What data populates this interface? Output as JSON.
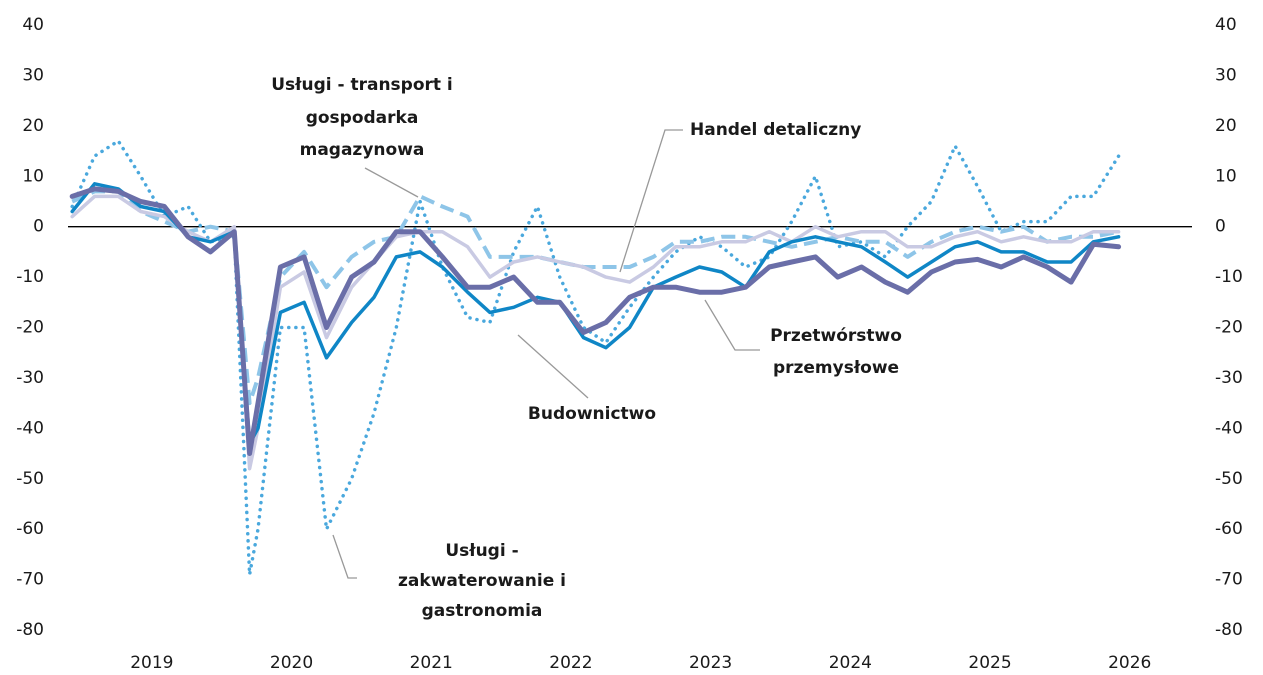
{
  "chart_data": {
    "type": "line",
    "xlim": [
      2018.857,
      2027.003
    ],
    "xticks": [
      {
        "value": 2019.5,
        "label": "2019"
      },
      {
        "value": 2020.5,
        "label": "2020"
      },
      {
        "value": 2021.5,
        "label": "2021"
      },
      {
        "value": 2022.5,
        "label": "2022"
      },
      {
        "value": 2023.5,
        "label": "2023"
      },
      {
        "value": 2024.5,
        "label": "2024"
      },
      {
        "value": 2025.5,
        "label": "2025"
      },
      {
        "value": 2026.5,
        "label": "2026"
      }
    ],
    "ylim": [
      -80,
      40
    ],
    "yticks": [
      40,
      30,
      20,
      10,
      0,
      -10,
      -20,
      -30,
      -40,
      -50,
      -60,
      -70,
      -80
    ],
    "y2lim": [
      -80,
      40
    ],
    "y2ticks": [
      40,
      30,
      20,
      10,
      0,
      -10,
      -20,
      -30,
      -40,
      -50,
      -60,
      -70,
      -80
    ],
    "x": [
      2018.93,
      2019.09,
      2019.26,
      2019.42,
      2019.59,
      2019.76,
      2019.92,
      2020.09,
      2020.2,
      2020.26,
      2020.42,
      2020.59,
      2020.75,
      2020.93,
      2021.09,
      2021.25,
      2021.42,
      2021.58,
      2021.76,
      2021.92,
      2022.09,
      2022.26,
      2022.42,
      2022.59,
      2022.75,
      2022.92,
      2023.09,
      2023.25,
      2023.42,
      2023.58,
      2023.75,
      2023.92,
      2024.08,
      2024.25,
      2024.41,
      2024.58,
      2024.75,
      2024.91,
      2025.08,
      2025.25,
      2025.41,
      2025.58,
      2025.74,
      2025.91,
      2026.08,
      2026.24,
      2026.42
    ],
    "series": [
      {
        "name": [
          "Usługi -",
          "zakwaterowanie i",
          "gastronomia"
        ],
        "color": "#4aa8dd",
        "style": "dotted",
        "values": [
          4,
          14,
          17,
          10,
          2,
          4,
          -3,
          -2,
          -69,
          -60,
          -20,
          -20,
          -60,
          -50,
          -37,
          -20,
          5,
          -8,
          -18,
          -19,
          -5,
          4,
          -10,
          -20,
          -23,
          -16,
          -10,
          -5,
          -2,
          -4,
          -8,
          -6,
          1,
          10,
          -4,
          -3,
          -6,
          0,
          5,
          16,
          8,
          -1,
          1,
          1,
          6,
          6,
          14
        ]
      },
      {
        "name": [
          "Usługi - transport i",
          "gospodarka",
          "magazynowa"
        ],
        "color": "#8ec5e8",
        "style": "dashed",
        "values": [
          5,
          7,
          7,
          3,
          1,
          -1,
          0,
          -1,
          -35,
          -30,
          -10,
          -5,
          -12,
          -6,
          -3,
          -2,
          6,
          4,
          2,
          -6,
          -6,
          -6,
          -7,
          -8,
          -8,
          -8,
          -6,
          -3,
          -3,
          -2,
          -2,
          -3,
          -4,
          -3,
          -2,
          -3,
          -3,
          -6,
          -3,
          -1,
          0,
          -1,
          0,
          -3,
          -2,
          -2,
          -1
        ]
      },
      {
        "name": [
          "Handel detaliczny"
        ],
        "color": "#c9cae3",
        "style": "solid",
        "values": [
          2,
          6,
          6,
          3,
          2,
          -1,
          -3,
          0,
          -48,
          -40,
          -12,
          -9,
          -22,
          -12,
          -7,
          -2,
          -1,
          -1,
          -4,
          -10,
          -7,
          -6,
          -7,
          -8,
          -10,
          -11,
          -8,
          -4,
          -4,
          -3,
          -3,
          -1,
          -3,
          0,
          -2,
          -1,
          -1,
          -4,
          -4,
          -2,
          -1,
          -3,
          -2,
          -3,
          -3,
          -1,
          -1
        ]
      },
      {
        "name": [
          "Budownictwo"
        ],
        "color": "#0f86c6",
        "style": "solid",
        "values": [
          3,
          8.5,
          7.5,
          4,
          3,
          -2,
          -3,
          -1,
          -43,
          -40,
          -17,
          -15,
          -26,
          -19,
          -14,
          -6,
          -5,
          -8,
          -13,
          -17,
          -16,
          -14,
          -15,
          -22,
          -24,
          -20,
          -12,
          -10,
          -8,
          -9,
          -12,
          -5,
          -3,
          -2,
          -3,
          -4,
          -7,
          -10,
          -7,
          -4,
          -3,
          -5,
          -5,
          -7,
          -7,
          -3,
          -2
        ]
      },
      {
        "name": [
          "Przetwórstwo",
          "przemysłowe"
        ],
        "color": "#6a6ea8",
        "style": "solid",
        "values": [
          6,
          7.5,
          7,
          5,
          4,
          -2,
          -5,
          -1,
          -45,
          -35,
          -8,
          -6,
          -20,
          -10,
          -7,
          -1,
          -1,
          -6,
          -12,
          -12,
          -10,
          -15,
          -15,
          -21,
          -19,
          -14,
          -12,
          -12,
          -13,
          -13,
          -12,
          -8,
          -7,
          -6,
          -10,
          -8,
          -11,
          -13,
          -9,
          -7,
          -6.5,
          -8,
          -6,
          -8,
          -11,
          -3.5,
          -4
        ]
      }
    ]
  }
}
